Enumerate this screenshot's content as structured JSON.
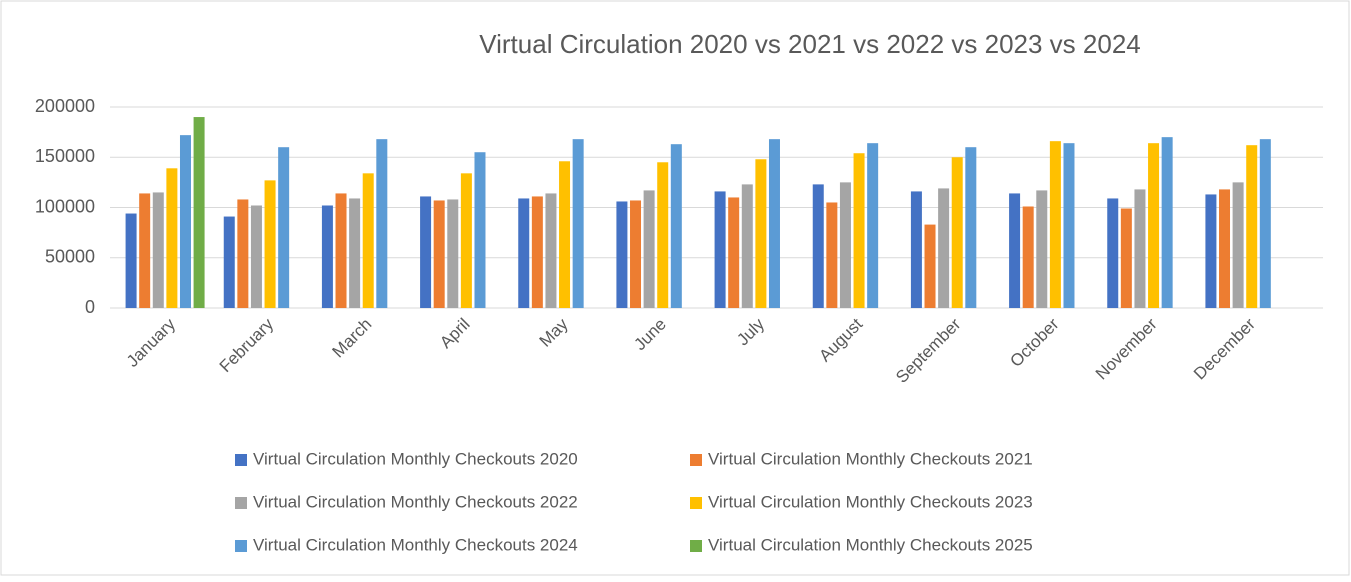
{
  "chart_data": {
    "type": "bar",
    "title": "Virtual Circulation 2020 vs 2021 vs 2022 vs 2023 vs 2024",
    "categories": [
      "January",
      "February",
      "March",
      "April",
      "May",
      "June",
      "July",
      "August",
      "September",
      "October",
      "November",
      "December"
    ],
    "series": [
      {
        "name": "Virtual Circulation Monthly Checkouts 2020",
        "color": "#4472c4",
        "values": [
          94000,
          91000,
          102000,
          111000,
          109000,
          106000,
          116000,
          123000,
          116000,
          114000,
          109000,
          113000
        ]
      },
      {
        "name": "Virtual Circulation Monthly Checkouts 2021",
        "color": "#ed7d31",
        "values": [
          114000,
          108000,
          114000,
          107000,
          111000,
          107000,
          110000,
          105000,
          83000,
          101000,
          99000,
          118000
        ]
      },
      {
        "name": "Virtual Circulation Monthly Checkouts 2022",
        "color": "#a5a5a5",
        "values": [
          115000,
          102000,
          109000,
          108000,
          114000,
          117000,
          123000,
          125000,
          119000,
          117000,
          118000,
          125000
        ]
      },
      {
        "name": "Virtual Circulation Monthly Checkouts 2023",
        "color": "#ffc000",
        "values": [
          139000,
          127000,
          134000,
          134000,
          146000,
          145000,
          148000,
          154000,
          150000,
          166000,
          164000,
          162000
        ]
      },
      {
        "name": "Virtual Circulation Monthly Checkouts 2024",
        "color": "#5b9bd5",
        "values": [
          172000,
          160000,
          168000,
          155000,
          168000,
          163000,
          168000,
          164000,
          160000,
          164000,
          170000,
          168000
        ]
      },
      {
        "name": "Virtual Circulation Monthly Checkouts 2025",
        "color": "#70ad47",
        "values": [
          190000,
          null,
          null,
          null,
          null,
          null,
          null,
          null,
          null,
          null,
          null,
          null
        ]
      }
    ],
    "ylim": [
      0,
      200000
    ],
    "yticks": [
      0,
      50000,
      100000,
      150000,
      200000
    ],
    "grid": true,
    "legend": "bottom"
  }
}
